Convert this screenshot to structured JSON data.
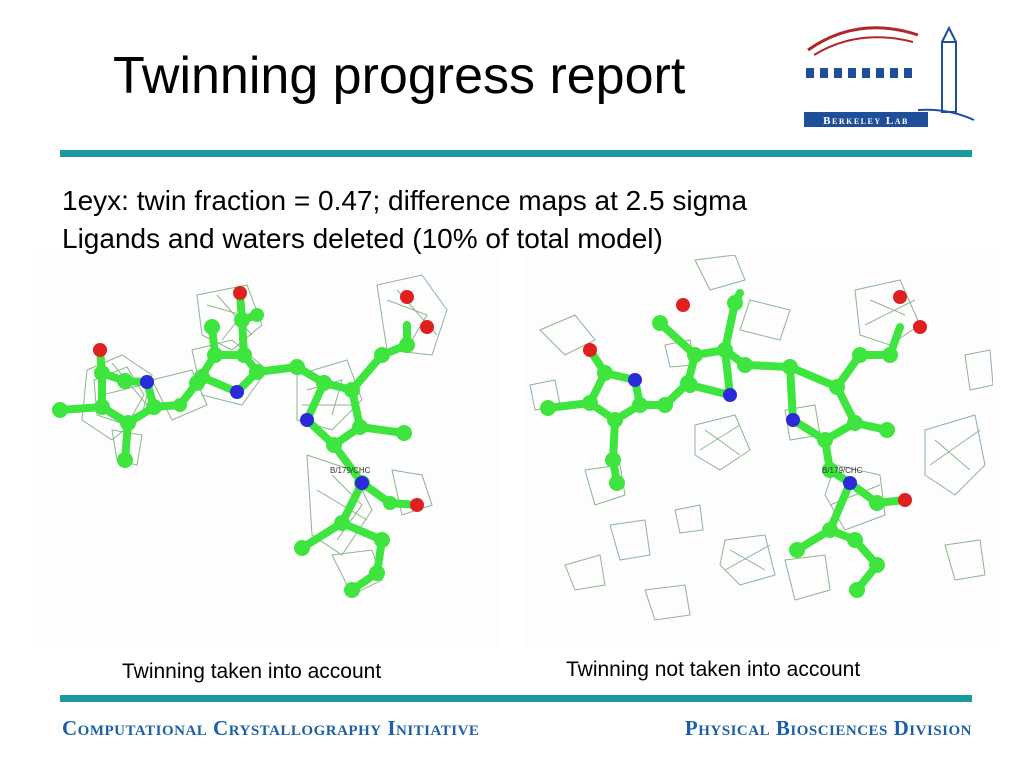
{
  "slide": {
    "title": "Twinning progress report",
    "bullets": [
      "1eyx: twin fraction = 0.47; difference maps at 2.5 sigma",
      "Ligands and waters deleted (10% of total model)"
    ],
    "captions": {
      "left": "Twinning taken into account",
      "right": "Twinning not taken into account"
    },
    "atom_label": "B/179/CHC"
  },
  "logo": {
    "text": "Berkeley Lab"
  },
  "footer": {
    "left": "Computational Crystallography Initiative",
    "right": "Physical Biosciences Division"
  },
  "colors": {
    "rule": "#1a9a9a",
    "footer_text": "#1a5fa8",
    "logo_blue": "#1f4e9a",
    "logo_red": "#b2262b",
    "carbon": "#3ee53e",
    "nitrogen": "#2a2ad8",
    "oxygen": "#e02020",
    "mesh": "#5a8a5a"
  }
}
